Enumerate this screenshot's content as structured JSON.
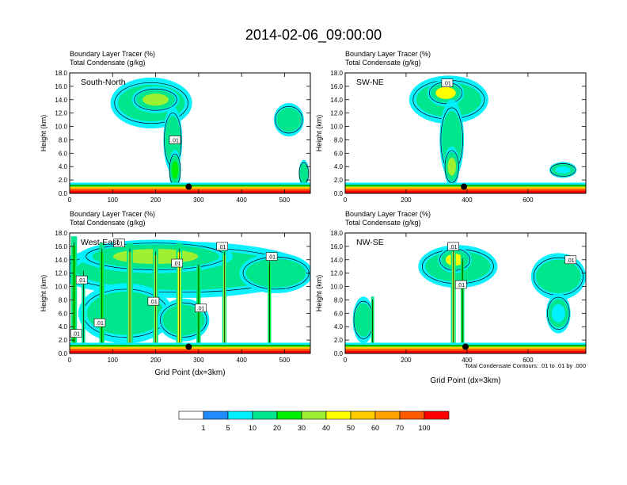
{
  "title": "2014-02-06_09:00:00",
  "colors": {
    "levels": [
      "#ffffff",
      "#1e8cff",
      "#00f0ff",
      "#00e68c",
      "#00f000",
      "#a0f032",
      "#ffff00",
      "#ffcc00",
      "#ffa000",
      "#ff5a00",
      "#ff0000"
    ],
    "contour": "#000000",
    "marker": "#000000"
  },
  "chart_data": [
    {
      "type": "heatmap",
      "panel_label": "South-North",
      "subtitle_1": "Boundary Layer Tracer   (%)",
      "subtitle_2": "Total Condensate   (g/kg)",
      "ylabel": "Height (km)",
      "xlabel": "",
      "xlim": [
        0,
        560
      ],
      "ylim": [
        0,
        18
      ],
      "xticks": [
        {
          "v": 0,
          "label": "0"
        },
        {
          "v": 100,
          "label": "100"
        },
        {
          "v": 200,
          "label": "200"
        },
        {
          "v": 300,
          "label": "300"
        },
        {
          "v": 400,
          "label": "400"
        },
        {
          "v": 500,
          "label": "500"
        }
      ],
      "yticks": [
        "0.0",
        "2.0",
        "4.0",
        "6.0",
        "8.0",
        "10.0",
        "12.0",
        "14.0",
        "16.0",
        "18.0"
      ],
      "contour_labels": [
        {
          "x": 245,
          "y": 8.0,
          "text": ".01"
        }
      ],
      "marker": {
        "x": 277,
        "y": 1.0
      },
      "clouds": [
        {
          "x": 190,
          "y": 13.5,
          "rx": 95,
          "ry": 3.8,
          "level": 3
        },
        {
          "x": 200,
          "y": 14.0,
          "rx": 55,
          "ry": 2.0,
          "level": 5
        },
        {
          "x": 240,
          "y": 8.0,
          "rx": 22,
          "ry": 5.0,
          "level": 3
        },
        {
          "x": 245,
          "y": 3.5,
          "rx": 14,
          "ry": 3.0,
          "level": 4
        },
        {
          "x": 510,
          "y": 11.0,
          "rx": 35,
          "ry": 2.5,
          "level": 3
        },
        {
          "x": 545,
          "y": 3.0,
          "rx": 12,
          "ry": 2.0,
          "level": 3
        }
      ]
    },
    {
      "type": "heatmap",
      "panel_label": "SW-NE",
      "subtitle_1": "Boundary Layer Tracer   (%)",
      "subtitle_2": "Total Condensate   (g/kg)",
      "ylabel": "Height (km)",
      "xlabel": "",
      "xlim": [
        0,
        790
      ],
      "ylim": [
        0,
        18
      ],
      "xticks": [
        {
          "v": 0,
          "label": "0"
        },
        {
          "v": 200,
          "label": "200"
        },
        {
          "v": 400,
          "label": "400"
        },
        {
          "v": 600,
          "label": "600"
        }
      ],
      "yticks": [
        "0.0",
        "2.0",
        "4.0",
        "6.0",
        "8.0",
        "10.0",
        "12.0",
        "14.0",
        "16.0",
        "18.0"
      ],
      "contour_labels": [
        {
          "x": 335,
          "y": 16.5,
          "text": ".01"
        }
      ],
      "marker": {
        "x": 390,
        "y": 1.0
      },
      "clouds": [
        {
          "x": 340,
          "y": 14.0,
          "rx": 130,
          "ry": 3.6,
          "level": 3
        },
        {
          "x": 330,
          "y": 15.0,
          "rx": 60,
          "ry": 2.0,
          "level": 6
        },
        {
          "x": 350,
          "y": 8.0,
          "rx": 40,
          "ry": 6.0,
          "level": 3
        },
        {
          "x": 350,
          "y": 4.0,
          "rx": 25,
          "ry": 3.0,
          "level": 5
        },
        {
          "x": 715,
          "y": 3.5,
          "rx": 45,
          "ry": 1.2,
          "level": 2
        }
      ]
    },
    {
      "type": "heatmap",
      "panel_label": "West-East",
      "subtitle_1": "Boundary Layer Tracer   (%)",
      "subtitle_2": "Total Condensate   (g/kg)",
      "ylabel": "Height (km)",
      "xlabel": "Grid Point (dx=3km)",
      "xlim": [
        0,
        560
      ],
      "ylim": [
        0,
        18
      ],
      "xticks": [
        {
          "v": 0,
          "label": "0"
        },
        {
          "v": 100,
          "label": "100"
        },
        {
          "v": 200,
          "label": "200"
        },
        {
          "v": 300,
          "label": "300"
        },
        {
          "v": 400,
          "label": "400"
        },
        {
          "v": 500,
          "label": "500"
        }
      ],
      "yticks": [
        "0.0",
        "2.0",
        "4.0",
        "6.0",
        "8.0",
        "10.0",
        "12.0",
        "14.0",
        "16.0",
        "18.0"
      ],
      "contour_labels": [
        {
          "x": 115,
          "y": 16.5,
          "text": ".01"
        },
        {
          "x": 355,
          "y": 16.0,
          "text": ".01"
        },
        {
          "x": 470,
          "y": 14.5,
          "text": ".01"
        },
        {
          "x": 250,
          "y": 13.5,
          "text": ".01"
        },
        {
          "x": 28,
          "y": 11.0,
          "text": ".01"
        },
        {
          "x": 195,
          "y": 7.8,
          "text": ".01"
        },
        {
          "x": 305,
          "y": 6.8,
          "text": ".01"
        },
        {
          "x": 70,
          "y": 4.6,
          "text": ".01"
        },
        {
          "x": 15,
          "y": 3.0,
          "text": ".01"
        }
      ],
      "marker": {
        "x": 277,
        "y": 1.0
      },
      "clouds": [
        {
          "x": 260,
          "y": 12.5,
          "rx": 300,
          "ry": 4.2,
          "level": 3
        },
        {
          "x": 200,
          "y": 14.5,
          "rx": 180,
          "ry": 2.5,
          "level": 5
        },
        {
          "x": 480,
          "y": 12.0,
          "rx": 85,
          "ry": 3.0,
          "level": 3
        },
        {
          "x": 130,
          "y": 6.0,
          "rx": 110,
          "ry": 4.5,
          "level": 3
        },
        {
          "x": 265,
          "y": 5.0,
          "rx": 60,
          "ry": 3.2,
          "level": 3
        }
      ],
      "columns": [
        {
          "x": 10,
          "top": 17.5,
          "w": 14,
          "level": 4
        },
        {
          "x": 32,
          "top": 13.0,
          "w": 8,
          "level": 3
        },
        {
          "x": 75,
          "top": 16.5,
          "w": 12,
          "level": 4
        },
        {
          "x": 140,
          "top": 16.5,
          "w": 14,
          "level": 5
        },
        {
          "x": 200,
          "top": 16.0,
          "w": 12,
          "level": 5
        },
        {
          "x": 255,
          "top": 16.5,
          "w": 14,
          "level": 6
        },
        {
          "x": 300,
          "top": 14.0,
          "w": 10,
          "level": 4
        },
        {
          "x": 360,
          "top": 16.0,
          "w": 10,
          "level": 5
        },
        {
          "x": 465,
          "top": 14.5,
          "w": 8,
          "level": 4
        }
      ]
    },
    {
      "type": "heatmap",
      "panel_label": "NW-SE",
      "subtitle_1": "Boundary Layer Tracer   (%)",
      "subtitle_2": "Total Condensate   (g/kg)",
      "ylabel": "Height (km)",
      "xlabel": "Grid Point (dx=3km)",
      "xlim": [
        0,
        790
      ],
      "ylim": [
        0,
        18
      ],
      "xticks": [
        {
          "v": 0,
          "label": "0"
        },
        {
          "v": 200,
          "label": "200"
        },
        {
          "v": 400,
          "label": "400"
        },
        {
          "v": 600,
          "label": "600"
        }
      ],
      "yticks": [
        "0.0",
        "2.0",
        "4.0",
        "6.0",
        "8.0",
        "10.0",
        "12.0",
        "14.0",
        "16.0",
        "18.0"
      ],
      "contour_labels": [
        {
          "x": 355,
          "y": 16.0,
          "text": ".01"
        },
        {
          "x": 740,
          "y": 14.0,
          "text": ".01"
        },
        {
          "x": 380,
          "y": 10.3,
          "text": ".01"
        }
      ],
      "marker": {
        "x": 395,
        "y": 1.0
      },
      "clouds": [
        {
          "x": 370,
          "y": 13.0,
          "rx": 130,
          "ry": 3.2,
          "level": 3
        },
        {
          "x": 360,
          "y": 14.0,
          "rx": 55,
          "ry": 2.0,
          "level": 6
        },
        {
          "x": 700,
          "y": 11.5,
          "rx": 90,
          "ry": 3.5,
          "level": 3
        },
        {
          "x": 700,
          "y": 6.0,
          "rx": 40,
          "ry": 3.0,
          "level": 2
        },
        {
          "x": 60,
          "y": 5.0,
          "rx": 35,
          "ry": 3.5,
          "level": 3
        }
      ],
      "columns": [
        {
          "x": 90,
          "top": 8.5,
          "w": 10,
          "level": 4
        },
        {
          "x": 355,
          "top": 16.5,
          "w": 16,
          "level": 5
        },
        {
          "x": 385,
          "top": 15.0,
          "w": 12,
          "level": 4
        }
      ],
      "footnote": "Total Condensate Contours: .01 to .01 by .000"
    }
  ],
  "colorbar": {
    "labels": [
      "1",
      "5",
      "10",
      "20",
      "30",
      "40",
      "50",
      "60",
      "70",
      "100"
    ]
  }
}
